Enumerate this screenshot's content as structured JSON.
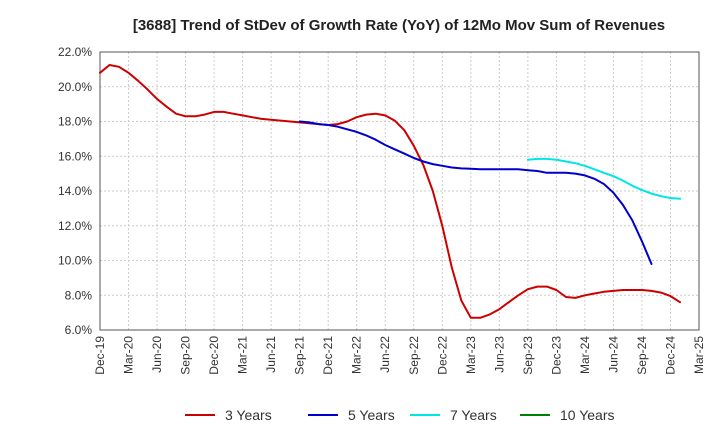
{
  "chart_data": {
    "type": "line",
    "title": "[3688]  Trend of StDev of Growth Rate (YoY) of 12Mo Mov Sum of Revenues",
    "xlabel": "",
    "ylabel": "",
    "ylim": [
      6.0,
      22.0
    ],
    "grid": true,
    "legend_position": "bottom",
    "y_ticks": [
      "22.0%",
      "20.0%",
      "18.0%",
      "16.0%",
      "14.0%",
      "12.0%",
      "10.0%",
      "8.0%",
      "6.0%"
    ],
    "y_tick_values": [
      22,
      20,
      18,
      16,
      14,
      12,
      10,
      8,
      6
    ],
    "x_ticks": [
      "Dec-19",
      "Mar-20",
      "Jun-20",
      "Sep-20",
      "Dec-20",
      "Mar-21",
      "Jun-21",
      "Sep-21",
      "Dec-21",
      "Mar-22",
      "Jun-22",
      "Sep-22",
      "Dec-22",
      "Mar-23",
      "Jun-23",
      "Sep-23",
      "Dec-23",
      "Mar-24",
      "Jun-24",
      "Sep-24",
      "Dec-24",
      "Mar-25"
    ],
    "series": [
      {
        "name": "3 Years",
        "color": "#cc0000",
        "start_index": 0,
        "values": [
          20.8,
          21.25,
          21.15,
          20.8,
          20.35,
          19.85,
          19.3,
          18.85,
          18.45,
          18.3,
          18.3,
          18.4,
          18.55,
          18.55,
          18.45,
          18.35,
          18.25,
          18.15,
          18.1,
          18.05,
          18.0,
          17.95,
          17.9,
          17.85,
          17.8,
          17.85,
          18.0,
          18.25,
          18.4,
          18.45,
          18.35,
          18.05,
          17.5,
          16.6,
          15.5,
          14.0,
          12.0,
          9.6,
          7.7,
          6.7,
          6.7,
          6.9,
          7.2,
          7.6,
          8.0,
          8.35,
          8.5,
          8.5,
          8.3,
          7.9,
          7.85,
          8.0,
          8.1,
          8.2,
          8.25,
          8.3,
          8.3,
          8.3,
          8.25,
          8.15,
          7.95,
          7.6
        ]
      },
      {
        "name": "5 Years",
        "color": "#0000cc",
        "start_index": 21,
        "values": [
          18.0,
          17.95,
          17.85,
          17.8,
          17.7,
          17.55,
          17.4,
          17.2,
          16.95,
          16.65,
          16.4,
          16.15,
          15.9,
          15.7,
          15.55,
          15.45,
          15.35,
          15.3,
          15.28,
          15.25,
          15.25,
          15.25,
          15.25,
          15.25,
          15.2,
          15.15,
          15.05,
          15.05,
          15.05,
          15.0,
          14.9,
          14.7,
          14.4,
          13.9,
          13.2,
          12.3,
          11.1,
          9.8
        ]
      },
      {
        "name": "7 Years",
        "color": "#00e5e5",
        "start_index": 45,
        "values": [
          15.8,
          15.85,
          15.85,
          15.8,
          15.7,
          15.6,
          15.45,
          15.25,
          15.05,
          14.85,
          14.6,
          14.3,
          14.05,
          13.85,
          13.7,
          13.6,
          13.55
        ]
      },
      {
        "name": "10 Years",
        "color": "#008000",
        "start_index": 0,
        "values": []
      }
    ]
  }
}
